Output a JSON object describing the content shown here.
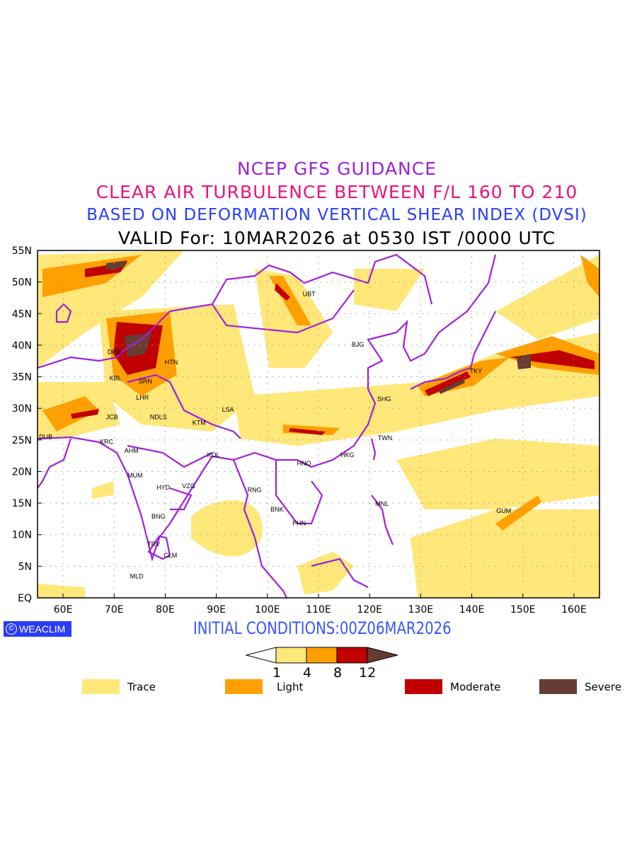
{
  "titles": {
    "line1": "NCEP GFS GUIDANCE",
    "line2": "CLEAR AIR TURBULENCE BETWEEN F/L 160 TO 210",
    "line3": "BASED ON DEFORMATION VERTICAL SHEAR INDEX (DVSI)",
    "line4": "VALID For: 10MAR2026 at 0530 IST /0000 UTC"
  },
  "map": {
    "lon_range": [
      55,
      165
    ],
    "lat_range": [
      0,
      55
    ],
    "lon_ticks": [
      "60E",
      "70E",
      "80E",
      "90E",
      "100E",
      "110E",
      "120E",
      "130E",
      "140E",
      "150E",
      "160E"
    ],
    "lat_ticks": [
      "EQ",
      "5N",
      "10N",
      "15N",
      "20N",
      "25N",
      "30N",
      "35N",
      "40N",
      "45N",
      "50N",
      "55N"
    ],
    "cities": [
      {
        "code": "UBT",
        "lon": 106.9,
        "lat": 48.1
      },
      {
        "code": "BJG",
        "lon": 116.5,
        "lat": 40.1
      },
      {
        "code": "DHB",
        "lon": 68.7,
        "lat": 38.9
      },
      {
        "code": "HTN",
        "lon": 79.9,
        "lat": 37.3
      },
      {
        "code": "KBL",
        "lon": 69.1,
        "lat": 34.8
      },
      {
        "code": "SRN",
        "lon": 74.8,
        "lat": 34.3
      },
      {
        "code": "TKY",
        "lon": 139.6,
        "lat": 35.9
      },
      {
        "code": "SHG",
        "lon": 121.5,
        "lat": 31.5
      },
      {
        "code": "LHR",
        "lon": 74.3,
        "lat": 31.7
      },
      {
        "code": "LSA",
        "lon": 91.1,
        "lat": 29.8
      },
      {
        "code": "JCB",
        "lon": 68.4,
        "lat": 28.6
      },
      {
        "code": "NDLS",
        "lon": 77.0,
        "lat": 28.6
      },
      {
        "code": "KTM",
        "lon": 85.3,
        "lat": 27.7
      },
      {
        "code": "DUB",
        "lon": 55.3,
        "lat": 25.5
      },
      {
        "code": "TWN",
        "lon": 121.6,
        "lat": 25.3
      },
      {
        "code": "KRC",
        "lon": 67.2,
        "lat": 24.7
      },
      {
        "code": "AHM",
        "lon": 72.0,
        "lat": 23.3
      },
      {
        "code": "HKG",
        "lon": 114.3,
        "lat": 22.6
      },
      {
        "code": "KOL",
        "lon": 88.2,
        "lat": 22.6
      },
      {
        "code": "HNO",
        "lon": 105.8,
        "lat": 21.3
      },
      {
        "code": "MUM",
        "lon": 72.6,
        "lat": 19.4
      },
      {
        "code": "HYD",
        "lon": 78.3,
        "lat": 17.5
      },
      {
        "code": "VZG",
        "lon": 83.3,
        "lat": 17.7
      },
      {
        "code": "RNG",
        "lon": 96.1,
        "lat": 17.1
      },
      {
        "code": "MNL",
        "lon": 121.1,
        "lat": 14.9
      },
      {
        "code": "BNK",
        "lon": 100.6,
        "lat": 14.0
      },
      {
        "code": "GUM",
        "lon": 144.8,
        "lat": 13.8
      },
      {
        "code": "PHN",
        "lon": 104.9,
        "lat": 11.8
      },
      {
        "code": "BNG",
        "lon": 77.3,
        "lat": 12.9
      },
      {
        "code": "TRV",
        "lon": 76.5,
        "lat": 8.5
      },
      {
        "code": "CLM",
        "lon": 79.7,
        "lat": 6.7
      },
      {
        "code": "MLD",
        "lon": 73.1,
        "lat": 3.4
      }
    ]
  },
  "footer": {
    "logo": "WEACLIM",
    "logo_symbol": "©",
    "initial_conditions": "INITIAL CONDITIONS:00Z06MAR2026"
  },
  "colorbar": {
    "thresholds": [
      "1",
      "4",
      "8",
      "12"
    ],
    "colors": [
      "#ffe77a",
      "#ffa000",
      "#c00000",
      "#673c32"
    ]
  },
  "legend": [
    {
      "label": "Trace",
      "color": "#ffe77a"
    },
    {
      "label": "Light",
      "color": "#ffa000"
    },
    {
      "label": "Moderate",
      "color": "#c00000"
    },
    {
      "label": "Severe",
      "color": "#673c32"
    }
  ]
}
